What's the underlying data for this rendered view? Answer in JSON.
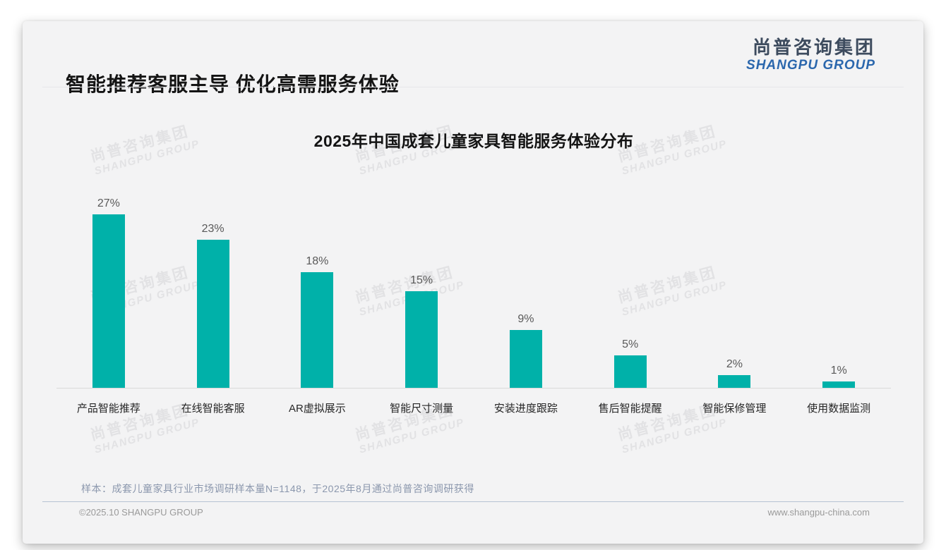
{
  "page": {
    "title": "智能推荐客服主导 优化高需服务体验",
    "logo": {
      "zh": "尚普咨询集团",
      "en": "SHANGPU GROUP"
    },
    "watermark": {
      "line1": "尚普咨询集团",
      "line2": "SHANGPU GROUP"
    },
    "note": "样本：成套儿童家具行业市场调研样本量N=1148，于2025年8月通过尚普咨询调研获得",
    "footer": {
      "left": "©2025.10 SHANGPU GROUP",
      "right": "www.shangpu-china.com"
    }
  },
  "colors": {
    "bar": "#00b1a9",
    "card_bg": "#f3f3f4",
    "logo_en_blue": "#2b67ad",
    "logo_zh_dark": "#3d4b5e",
    "note_text": "#8b97ad",
    "footer_divider": "#b7c3d3"
  },
  "chart_data": {
    "type": "bar",
    "title": "2025年中国成套儿童家具智能服务体验分布",
    "categories": [
      "产品智能推荐",
      "在线智能客服",
      "AR虚拟展示",
      "智能尺寸测量",
      "安装进度跟踪",
      "售后智能提醒",
      "智能保修管理",
      "使用数据监测"
    ],
    "values": [
      27,
      23,
      18,
      15,
      9,
      5,
      2,
      1
    ],
    "data_labels": [
      "27%",
      "23%",
      "18%",
      "15%",
      "9%",
      "5%",
      "2%",
      "1%"
    ],
    "unit": "%",
    "xlabel": "",
    "ylabel": "",
    "ylim": [
      0,
      30
    ],
    "grid": false,
    "legend": false,
    "bar_color": "#00b1a9"
  }
}
